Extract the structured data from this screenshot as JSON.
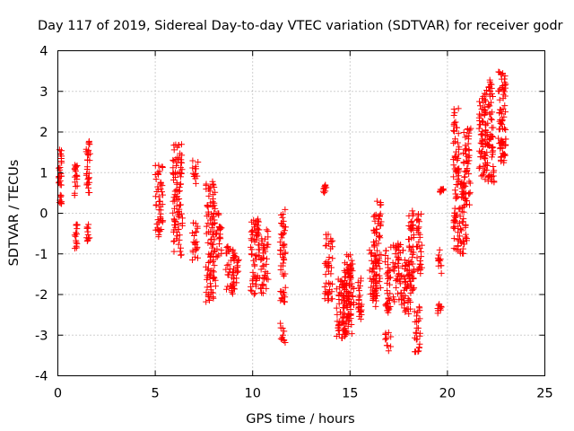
{
  "chart_data": {
    "type": "scatter",
    "title": "Day 117 of 2019, Sidereal Day-to-day VTEC variation (SDTVAR) for receiver godr",
    "xlabel": "GPS time / hours",
    "ylabel": "SDTVAR / TECUs",
    "xlim": [
      0,
      25
    ],
    "ylim": [
      -4,
      4
    ],
    "xticks": [
      0,
      5,
      10,
      15,
      20,
      25
    ],
    "yticks": [
      -4,
      -3,
      -2,
      -1,
      0,
      1,
      2,
      3,
      4
    ],
    "grid": true,
    "marker": "+",
    "color": "#ff0000",
    "series": [
      {
        "name": "SDTVAR",
        "clusters": [
          {
            "x": [
              0.05,
              0.2
            ],
            "y": [
              0.2,
              1.6
            ]
          },
          {
            "x": [
              0.85,
              1.0
            ],
            "y": [
              0.4,
              1.2
            ]
          },
          {
            "x": [
              0.85,
              1.0
            ],
            "y": [
              -0.9,
              -0.2
            ]
          },
          {
            "x": [
              1.45,
              1.65
            ],
            "y": [
              0.5,
              1.8
            ]
          },
          {
            "x": [
              1.45,
              1.65
            ],
            "y": [
              -0.7,
              -0.2
            ]
          },
          {
            "x": [
              5.0,
              5.4
            ],
            "y": [
              -0.6,
              1.2
            ]
          },
          {
            "x": [
              5.9,
              6.4
            ],
            "y": [
              -1.1,
              1.7
            ]
          },
          {
            "x": [
              6.9,
              7.2
            ],
            "y": [
              0.7,
              1.3
            ]
          },
          {
            "x": [
              6.9,
              7.2
            ],
            "y": [
              -1.2,
              -0.2
            ]
          },
          {
            "x": [
              7.6,
              8.1
            ],
            "y": [
              -2.2,
              0.9
            ]
          },
          {
            "x": [
              8.1,
              8.4
            ],
            "y": [
              -1.1,
              0.0
            ]
          },
          {
            "x": [
              8.6,
              9.1
            ],
            "y": [
              -2.0,
              -0.8
            ]
          },
          {
            "x": [
              9.0,
              9.3
            ],
            "y": [
              -1.8,
              -1.0
            ]
          },
          {
            "x": [
              9.9,
              10.4
            ],
            "y": [
              -2.0,
              -0.1
            ]
          },
          {
            "x": [
              10.4,
              10.8
            ],
            "y": [
              -2.0,
              -0.4
            ]
          },
          {
            "x": [
              11.4,
              11.7
            ],
            "y": [
              -3.2,
              -2.7
            ]
          },
          {
            "x": [
              11.4,
              11.7
            ],
            "y": [
              -2.2,
              0.1
            ]
          },
          {
            "x": [
              13.6,
              13.8
            ],
            "y": [
              0.5,
              0.7
            ]
          },
          {
            "x": [
              13.7,
              14.1
            ],
            "y": [
              -2.2,
              -0.5
            ]
          },
          {
            "x": [
              14.3,
              14.8
            ],
            "y": [
              -3.1,
              -1.6
            ]
          },
          {
            "x": [
              14.6,
              15.1
            ],
            "y": [
              -3.0,
              -1.2
            ]
          },
          {
            "x": [
              14.8,
              15.2
            ],
            "y": [
              -2.8,
              -1.0
            ]
          },
          {
            "x": [
              15.4,
              15.6
            ],
            "y": [
              -2.7,
              -1.5
            ]
          },
          {
            "x": [
              16.0,
              16.4
            ],
            "y": [
              -2.3,
              -0.9
            ]
          },
          {
            "x": [
              16.2,
              16.6
            ],
            "y": [
              -2.1,
              0.3
            ]
          },
          {
            "x": [
              16.8,
              17.1
            ],
            "y": [
              -3.4,
              -2.9
            ]
          },
          {
            "x": [
              16.8,
              17.1
            ],
            "y": [
              -2.5,
              -0.8
            ]
          },
          {
            "x": [
              17.2,
              17.6
            ],
            "y": [
              -2.2,
              -0.7
            ]
          },
          {
            "x": [
              17.6,
              18.1
            ],
            "y": [
              -2.5,
              -0.9
            ]
          },
          {
            "x": [
              18.0,
              18.3
            ],
            "y": [
              -2.0,
              0.1
            ]
          },
          {
            "x": [
              18.3,
              18.6
            ],
            "y": [
              -3.5,
              -2.3
            ]
          },
          {
            "x": [
              18.4,
              18.7
            ],
            "y": [
              -1.5,
              0.0
            ]
          },
          {
            "x": [
              19.5,
              19.7
            ],
            "y": [
              -2.5,
              -2.2
            ]
          },
          {
            "x": [
              19.5,
              19.7
            ],
            "y": [
              -1.5,
              -0.9
            ]
          },
          {
            "x": [
              19.6,
              19.8
            ],
            "y": [
              0.5,
              0.6
            ]
          },
          {
            "x": [
              20.3,
              20.6
            ],
            "y": [
              -0.9,
              2.6
            ]
          },
          {
            "x": [
              20.6,
              21.0
            ],
            "y": [
              -1.0,
              0.8
            ]
          },
          {
            "x": [
              20.8,
              21.2
            ],
            "y": [
              0.2,
              2.1
            ]
          },
          {
            "x": [
              21.6,
              22.0
            ],
            "y": [
              0.9,
              2.9
            ]
          },
          {
            "x": [
              21.9,
              22.4
            ],
            "y": [
              0.7,
              3.3
            ]
          },
          {
            "x": [
              22.6,
              23.0
            ],
            "y": [
              1.3,
              3.5
            ]
          },
          {
            "x": [
              22.7,
              23.0
            ],
            "y": [
              1.2,
              1.9
            ]
          }
        ]
      }
    ]
  }
}
